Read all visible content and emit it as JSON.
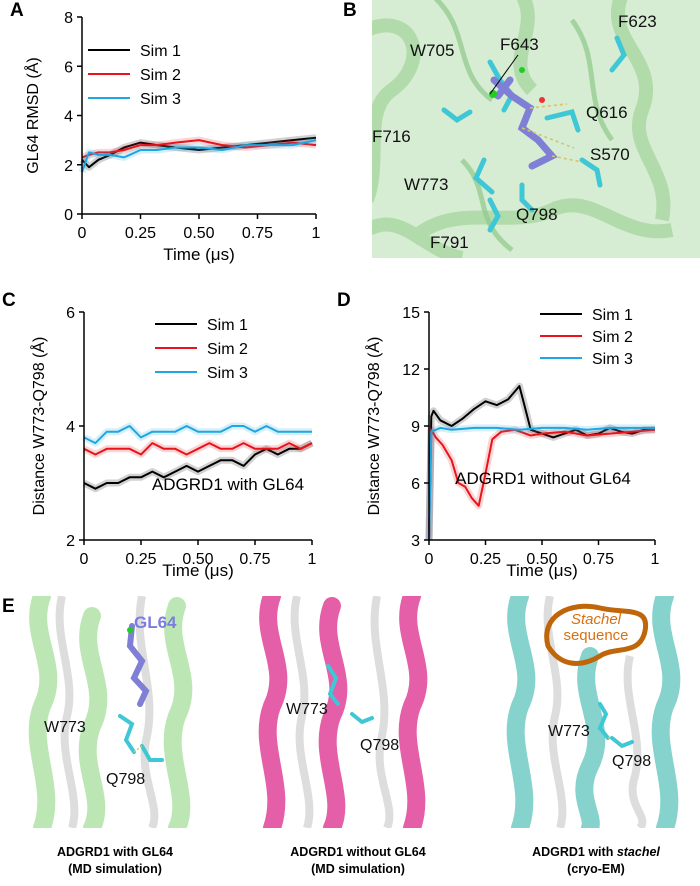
{
  "panels": {
    "A": "A",
    "B": "B",
    "C": "C",
    "D": "D",
    "E": "E"
  },
  "colors": {
    "sim1": "#000000",
    "sim2": "#e8141b",
    "sim3": "#1ea7e0"
  },
  "chart_data": [
    {
      "panel": "A",
      "type": "line",
      "title": "",
      "xlabel": "Time (μs)",
      "ylabel": "GL64 RMSD (Å)",
      "xlim": [
        0,
        1
      ],
      "ylim": [
        0,
        8
      ],
      "xticks": [
        "0",
        "0.25",
        "0.50",
        "0.75",
        "1"
      ],
      "yticks": [
        "0",
        "2",
        "4",
        "6",
        "8"
      ],
      "legend": "top-left",
      "annotation": "",
      "series": [
        {
          "name": "Sim 1",
          "x": [
            0,
            0.03,
            0.07,
            0.12,
            0.18,
            0.25,
            0.32,
            0.4,
            0.5,
            0.6,
            0.7,
            0.8,
            0.9,
            1.0
          ],
          "y": [
            2.2,
            1.9,
            2.2,
            2.4,
            2.7,
            2.9,
            2.8,
            2.7,
            2.6,
            2.7,
            2.8,
            2.9,
            3.0,
            3.1
          ]
        },
        {
          "name": "Sim 2",
          "x": [
            0,
            0.03,
            0.07,
            0.12,
            0.18,
            0.25,
            0.32,
            0.4,
            0.5,
            0.6,
            0.7,
            0.8,
            0.9,
            1.0
          ],
          "y": [
            2.3,
            2.4,
            2.5,
            2.5,
            2.6,
            2.8,
            2.8,
            2.9,
            3.0,
            2.8,
            2.7,
            2.8,
            2.9,
            2.8
          ]
        },
        {
          "name": "Sim 3",
          "x": [
            0,
            0.03,
            0.07,
            0.12,
            0.18,
            0.25,
            0.32,
            0.4,
            0.5,
            0.6,
            0.7,
            0.8,
            0.9,
            1.0
          ],
          "y": [
            1.7,
            2.5,
            2.4,
            2.4,
            2.3,
            2.6,
            2.6,
            2.7,
            2.7,
            2.6,
            2.8,
            2.8,
            2.8,
            3.0
          ]
        }
      ]
    },
    {
      "panel": "C",
      "type": "line",
      "title": "",
      "xlabel": "Time (μs)",
      "ylabel": "Distance W773-Q798 (Å)",
      "xlim": [
        0,
        1
      ],
      "ylim": [
        2,
        6
      ],
      "xticks": [
        "0",
        "0.25",
        "0.50",
        "0.75",
        "1"
      ],
      "yticks": [
        "2",
        "4",
        "6"
      ],
      "legend": "top-right",
      "annotation": "ADGRD1 with GL64",
      "series": [
        {
          "name": "Sim 1",
          "x": [
            0,
            0.05,
            0.1,
            0.15,
            0.2,
            0.25,
            0.3,
            0.35,
            0.4,
            0.45,
            0.5,
            0.55,
            0.6,
            0.65,
            0.7,
            0.75,
            0.8,
            0.85,
            0.9,
            0.95,
            1.0
          ],
          "y": [
            3.0,
            2.9,
            3.0,
            3.0,
            3.1,
            3.1,
            3.2,
            3.1,
            3.2,
            3.3,
            3.2,
            3.3,
            3.4,
            3.4,
            3.3,
            3.5,
            3.6,
            3.5,
            3.6,
            3.6,
            3.7
          ]
        },
        {
          "name": "Sim 2",
          "x": [
            0,
            0.05,
            0.1,
            0.15,
            0.2,
            0.25,
            0.3,
            0.35,
            0.4,
            0.45,
            0.5,
            0.55,
            0.6,
            0.65,
            0.7,
            0.75,
            0.8,
            0.85,
            0.9,
            0.95,
            1.0
          ],
          "y": [
            3.6,
            3.5,
            3.6,
            3.6,
            3.6,
            3.5,
            3.7,
            3.6,
            3.6,
            3.5,
            3.6,
            3.7,
            3.6,
            3.6,
            3.7,
            3.6,
            3.6,
            3.6,
            3.7,
            3.6,
            3.7
          ]
        },
        {
          "name": "Sim 3",
          "x": [
            0,
            0.05,
            0.1,
            0.15,
            0.2,
            0.25,
            0.3,
            0.35,
            0.4,
            0.45,
            0.5,
            0.55,
            0.6,
            0.65,
            0.7,
            0.75,
            0.8,
            0.85,
            0.9,
            0.95,
            1.0
          ],
          "y": [
            3.8,
            3.7,
            3.9,
            3.9,
            4.0,
            3.8,
            3.9,
            3.9,
            3.9,
            4.0,
            3.9,
            3.9,
            3.9,
            4.0,
            4.0,
            3.9,
            4.0,
            3.9,
            3.9,
            3.9,
            3.9
          ]
        }
      ]
    },
    {
      "panel": "D",
      "type": "line",
      "title": "",
      "xlabel": "Time (μs)",
      "ylabel": "Distance W773-Q798 (Å)",
      "xlim": [
        0,
        1
      ],
      "ylim": [
        3,
        15
      ],
      "xticks": [
        "0",
        "0.25",
        "0.50",
        "0.75",
        "1"
      ],
      "yticks": [
        "3",
        "6",
        "9",
        "12",
        "15"
      ],
      "legend": "top-right",
      "annotation": "ADGRD1 without GL64",
      "series": [
        {
          "name": "Sim 1",
          "x": [
            0,
            0.01,
            0.02,
            0.05,
            0.1,
            0.15,
            0.2,
            0.25,
            0.3,
            0.35,
            0.4,
            0.42,
            0.45,
            0.5,
            0.55,
            0.6,
            0.65,
            0.7,
            0.75,
            0.8,
            0.85,
            0.9,
            0.95,
            1.0
          ],
          "y": [
            3.0,
            9.5,
            9.8,
            9.3,
            9.0,
            9.4,
            9.9,
            10.3,
            10.1,
            10.4,
            11.1,
            10.2,
            8.8,
            8.6,
            8.4,
            8.6,
            8.8,
            8.5,
            8.6,
            8.9,
            8.7,
            8.6,
            8.8,
            8.8
          ]
        },
        {
          "name": "Sim 2",
          "x": [
            0,
            0.01,
            0.03,
            0.06,
            0.1,
            0.13,
            0.16,
            0.19,
            0.22,
            0.25,
            0.28,
            0.32,
            0.38,
            0.45,
            0.5,
            0.6,
            0.7,
            0.8,
            0.9,
            1.0
          ],
          "y": [
            3.0,
            8.8,
            8.4,
            8.0,
            7.2,
            6.0,
            5.8,
            5.2,
            4.8,
            6.5,
            8.3,
            8.7,
            8.8,
            8.5,
            8.6,
            8.7,
            8.5,
            8.6,
            8.7,
            8.8
          ]
        },
        {
          "name": "Sim 3",
          "x": [
            0,
            0.01,
            0.05,
            0.1,
            0.2,
            0.3,
            0.4,
            0.5,
            0.6,
            0.7,
            0.8,
            0.9,
            1.0
          ],
          "y": [
            3.0,
            8.7,
            8.9,
            8.8,
            8.9,
            8.9,
            8.8,
            8.9,
            8.9,
            8.8,
            8.9,
            8.9,
            8.9
          ]
        }
      ]
    }
  ],
  "structure_b": {
    "labels": [
      "W705",
      "F643",
      "F623",
      "Q616",
      "F716",
      "S570",
      "W773",
      "Q798",
      "F791"
    ]
  },
  "structure_e": {
    "panel1": {
      "ligand": "GL64",
      "res1": "W773",
      "res2": "Q798",
      "caption_line1": "ADGRD1 with GL64",
      "caption_line2": "(MD simulation)"
    },
    "panel2": {
      "res1": "W773",
      "res2": "Q798",
      "caption_line1": "ADGRD1 without GL64",
      "caption_line2": "(MD simulation)"
    },
    "panel3": {
      "stachel_word": "Stachel",
      "stachel_word2": "sequence",
      "res1": "W773",
      "res2": "Q798",
      "caption_line1_prefix": "ADGRD1 with ",
      "caption_line1_italic": "stachel",
      "caption_line2": "(cryo-EM)"
    }
  }
}
